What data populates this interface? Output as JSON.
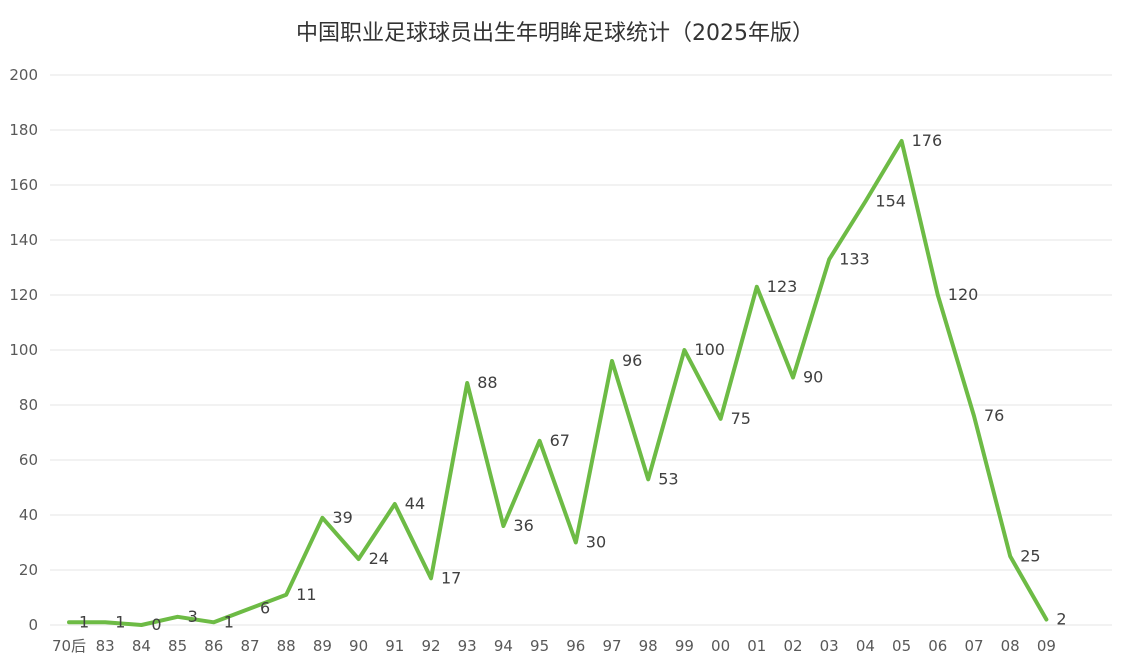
{
  "chart_data": {
    "type": "line",
    "title": "中国职业足球球员出生年明眸足球统计（2025年版）",
    "categories": [
      "70后",
      "83",
      "84",
      "85",
      "86",
      "87",
      "88",
      "89",
      "90",
      "91",
      "92",
      "93",
      "94",
      "95",
      "96",
      "97",
      "98",
      "99",
      "00",
      "01",
      "02",
      "03",
      "04",
      "05",
      "06",
      "07",
      "08",
      "09"
    ],
    "series": [
      {
        "values": [
          1,
          1,
          0,
          3,
          1,
          6,
          11,
          39,
          24,
          44,
          17,
          88,
          36,
          67,
          30,
          96,
          53,
          100,
          75,
          123,
          90,
          133,
          154,
          176,
          120,
          76,
          25,
          2
        ]
      }
    ],
    "data_labels": [
      "1",
      "1",
      "0",
      "3",
      "1",
      "6",
      "11",
      "39",
      "24",
      "44",
      "17",
      "88",
      "36",
      "67",
      "30",
      "96",
      "53",
      "100",
      "75",
      "123",
      "90",
      "133",
      "154",
      "176",
      "120",
      "76",
      "25",
      "2"
    ],
    "y_ticks": [
      "0",
      "20",
      "40",
      "60",
      "80",
      "100",
      "120",
      "140",
      "160",
      "180",
      "200"
    ],
    "ylim": [
      0,
      200
    ],
    "grid": true,
    "line_color": "#6dbb45"
  }
}
